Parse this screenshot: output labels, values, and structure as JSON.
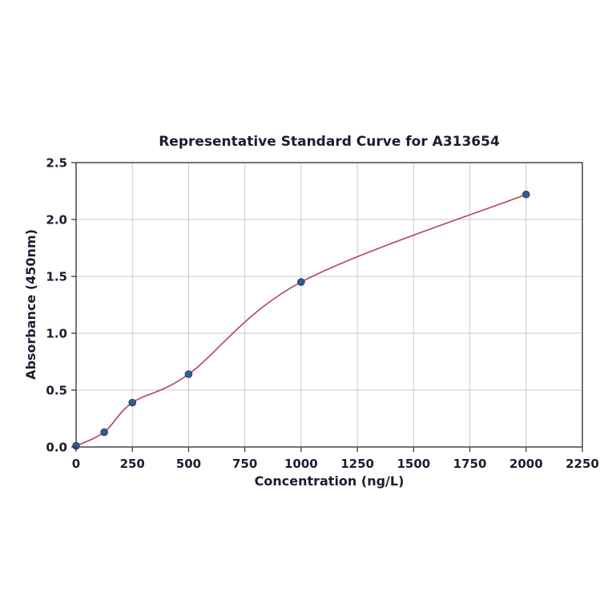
{
  "page": {
    "background": "#ffffff"
  },
  "chart_data": {
    "type": "scatter",
    "title": "Representative Standard Curve for A313654",
    "xlabel": "Concentration (ng/L)",
    "ylabel": "Absorbance (450nm)",
    "xlim": [
      0,
      2250
    ],
    "ylim": [
      0,
      2.5
    ],
    "xticks": {
      "values": [
        0,
        250,
        500,
        750,
        1000,
        1250,
        1500,
        1750,
        2000,
        2250
      ],
      "labels": [
        "0",
        "250",
        "500",
        "750",
        "1000",
        "1250",
        "1500",
        "1750",
        "2000",
        "2250"
      ]
    },
    "yticks": {
      "values": [
        0,
        0.5,
        1.0,
        1.5,
        2.0,
        2.5
      ],
      "labels": [
        "0.0",
        "0.5",
        "1.0",
        "1.5",
        "2.0",
        "2.5"
      ]
    },
    "points": {
      "x": [
        0,
        125,
        250,
        500,
        1000,
        2000
      ],
      "y": [
        0.01,
        0.13,
        0.39,
        0.64,
        1.45,
        2.22
      ]
    },
    "fit_curve": true,
    "grid": true,
    "legend": "none",
    "colors": {
      "curve": "#b2455e",
      "point_fill": "#2f5f8f",
      "point_edge": "#1f3f63",
      "text": "#1c1c30",
      "grid": "#c9c9c9",
      "axis": "#2a2a3a"
    }
  }
}
